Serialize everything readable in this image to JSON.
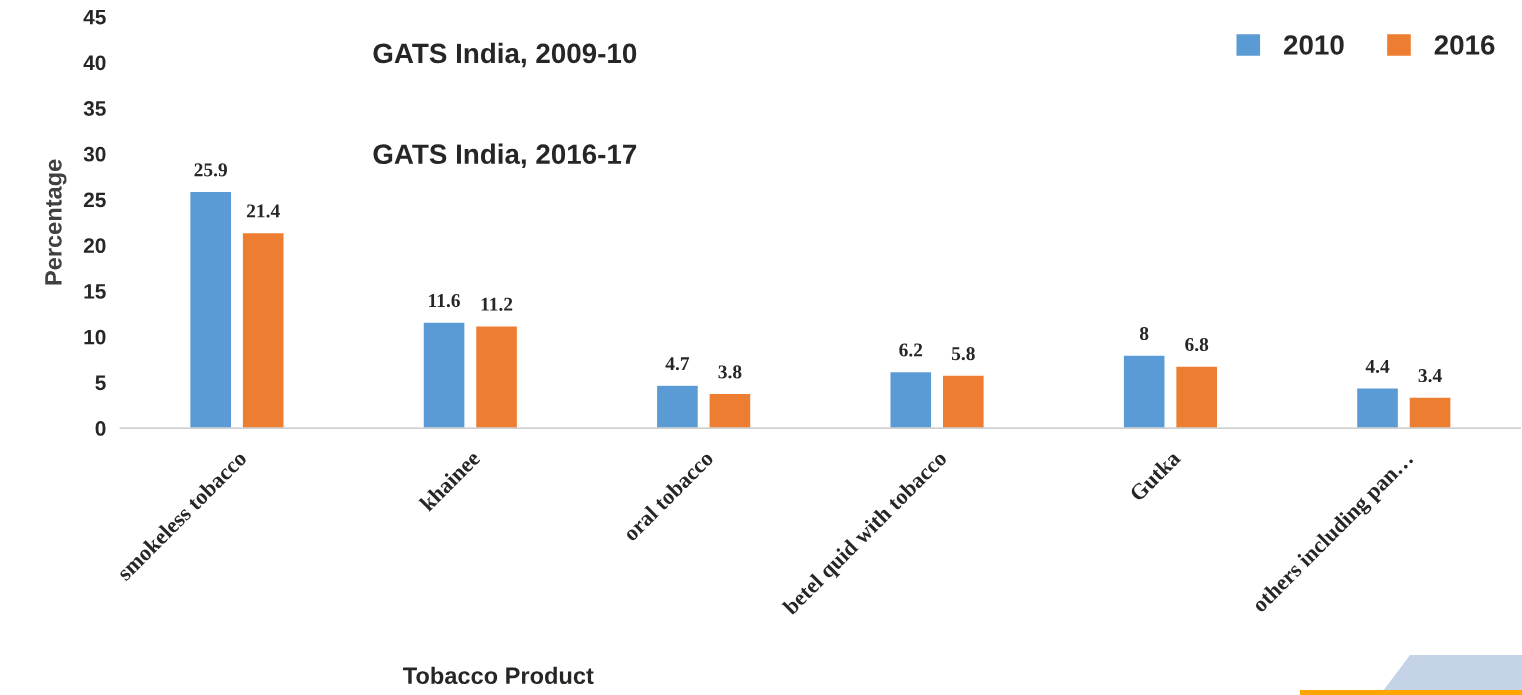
{
  "chart_data": {
    "type": "bar",
    "title": "GATS India, 2009-10",
    "subtitle": "GATS India, 2016-17",
    "xlabel": "Tobacco Product",
    "ylabel": "Percentage",
    "categories": [
      "smokeless tobacco",
      "khainee",
      "oral tobacco",
      "betel quid with tobacco",
      "Gutka",
      "others including pan…"
    ],
    "series": [
      {
        "name": "2010",
        "color": "#5b9bd5",
        "values": [
          25.9,
          11.6,
          4.7,
          6.2,
          8,
          4.4
        ]
      },
      {
        "name": "2016",
        "color": "#ed7d31",
        "values": [
          21.4,
          11.2,
          3.8,
          5.8,
          6.8,
          3.4
        ]
      }
    ],
    "ylim": [
      0,
      45
    ],
    "yticks": [
      0,
      5,
      10,
      15,
      20,
      25,
      30,
      35,
      40,
      45
    ],
    "data_labels": true,
    "grid": false,
    "legend": "top right"
  }
}
